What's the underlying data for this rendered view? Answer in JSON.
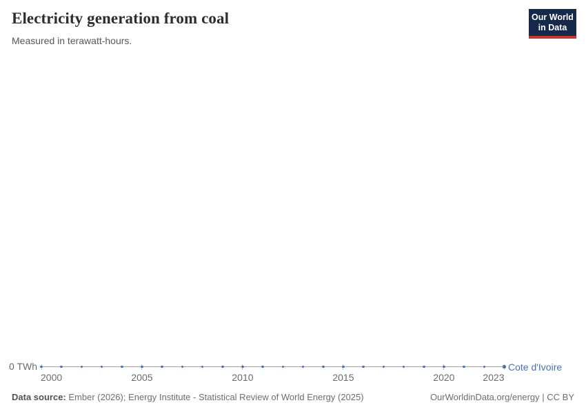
{
  "header": {
    "title": "Electricity generation from coal",
    "subtitle": "Measured in terawatt-hours."
  },
  "logo": {
    "line1": "Our World",
    "line2": "in Data",
    "bg_color": "#14294b",
    "accent_color": "#c9362f"
  },
  "chart_data": {
    "type": "line",
    "title": "Electricity generation from coal",
    "subtitle": "Measured in terawatt-hours.",
    "unit": "TWh",
    "x": [
      2000,
      2001,
      2002,
      2003,
      2004,
      2005,
      2006,
      2007,
      2008,
      2009,
      2010,
      2011,
      2012,
      2013,
      2014,
      2015,
      2016,
      2017,
      2018,
      2019,
      2020,
      2021,
      2022,
      2023
    ],
    "series": [
      {
        "name": "Cote d'Ivoire",
        "color": "#4c6fae",
        "values": [
          0,
          0,
          0,
          0,
          0,
          0,
          0,
          0,
          0,
          0,
          0,
          0,
          0,
          0,
          0,
          0,
          0,
          0,
          0,
          0,
          0,
          0,
          0,
          0
        ]
      }
    ],
    "xlim": [
      2000,
      2023
    ],
    "x_ticks": [
      2000,
      2005,
      2010,
      2015,
      2020,
      2023
    ],
    "y_zero_label": "0 TWh",
    "grid": false,
    "legend_position": "end-of-line",
    "markers": true
  },
  "footer": {
    "data_source_label": "Data source:",
    "data_source_text": " Ember (2026); Energy Institute - Statistical Review of World Energy (2025)",
    "credit": "OurWorldinData.org/energy | CC BY"
  }
}
